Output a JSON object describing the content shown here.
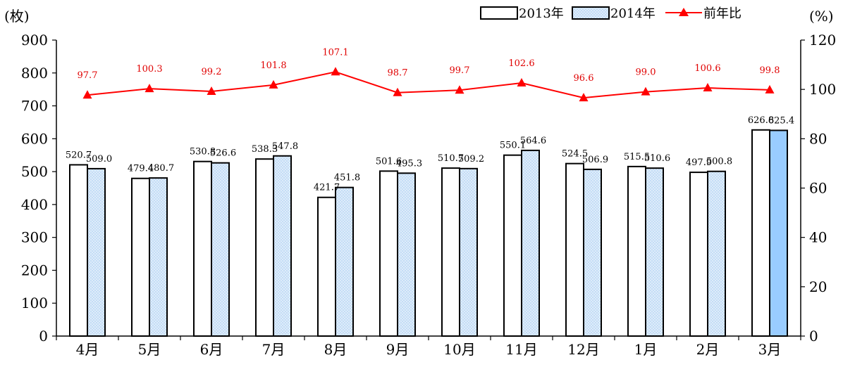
{
  "chart_data": {
    "type": "bar",
    "categories": [
      "4月",
      "5月",
      "6月",
      "7月",
      "8月",
      "9月",
      "10月",
      "11月",
      "12月",
      "1月",
      "2月",
      "3月"
    ],
    "series": [
      {
        "name": "2013年",
        "type": "bar",
        "axis": "left",
        "values": [
          520.7,
          479.4,
          530.8,
          538.3,
          421.7,
          501.6,
          510.7,
          550.1,
          524.5,
          515.5,
          497.9,
          626.8
        ]
      },
      {
        "name": "2014年",
        "type": "bar",
        "axis": "left",
        "values": [
          509.0,
          480.7,
          526.6,
          547.8,
          451.8,
          495.3,
          509.2,
          564.6,
          506.9,
          510.6,
          500.8,
          625.4
        ]
      },
      {
        "name": "前年比",
        "type": "line",
        "axis": "right",
        "values": [
          97.7,
          100.3,
          99.2,
          101.8,
          107.1,
          98.7,
          99.7,
          102.6,
          96.6,
          99.0,
          100.6,
          99.8
        ]
      }
    ],
    "bar_labels": [
      [
        "520.7",
        "479.4",
        "530.8",
        "538.3",
        "421.7",
        "501.6",
        "510.7",
        "550.1",
        "524.5",
        "515.5",
        "497.9",
        "626.8"
      ],
      [
        "509.0",
        "480.7",
        "526.6",
        "547.8",
        "451.8",
        "495.3",
        "509.2",
        "564.6",
        "506.9",
        "510.6",
        "500.8",
        "625.4"
      ]
    ],
    "line_labels": [
      "97.7",
      "100.3",
      "99.2",
      "101.8",
      "107.1",
      "98.7",
      "99.7",
      "102.6",
      "96.6",
      "99.0",
      "100.6",
      "99.8"
    ],
    "left_unit": "(枚)",
    "right_unit": "(%)",
    "ylim_left": [
      0,
      900
    ],
    "yticks_left": [
      "0",
      "100",
      "200",
      "300",
      "400",
      "500",
      "600",
      "700",
      "800",
      "900"
    ],
    "ylim_right": [
      0,
      120
    ],
    "yticks_right": [
      "0",
      "20",
      "40",
      "60",
      "80",
      "100",
      "120"
    ],
    "grid": false,
    "legend_position": "top-right",
    "colors": {
      "bar_2013_fill": "#ffffff",
      "bar_2014_fill": "#bcd9f5",
      "bar_2014_last_fill": "#99ccff",
      "bar_stroke": "#000000",
      "line": "#ff0000",
      "line_label": "#e00000"
    }
  }
}
